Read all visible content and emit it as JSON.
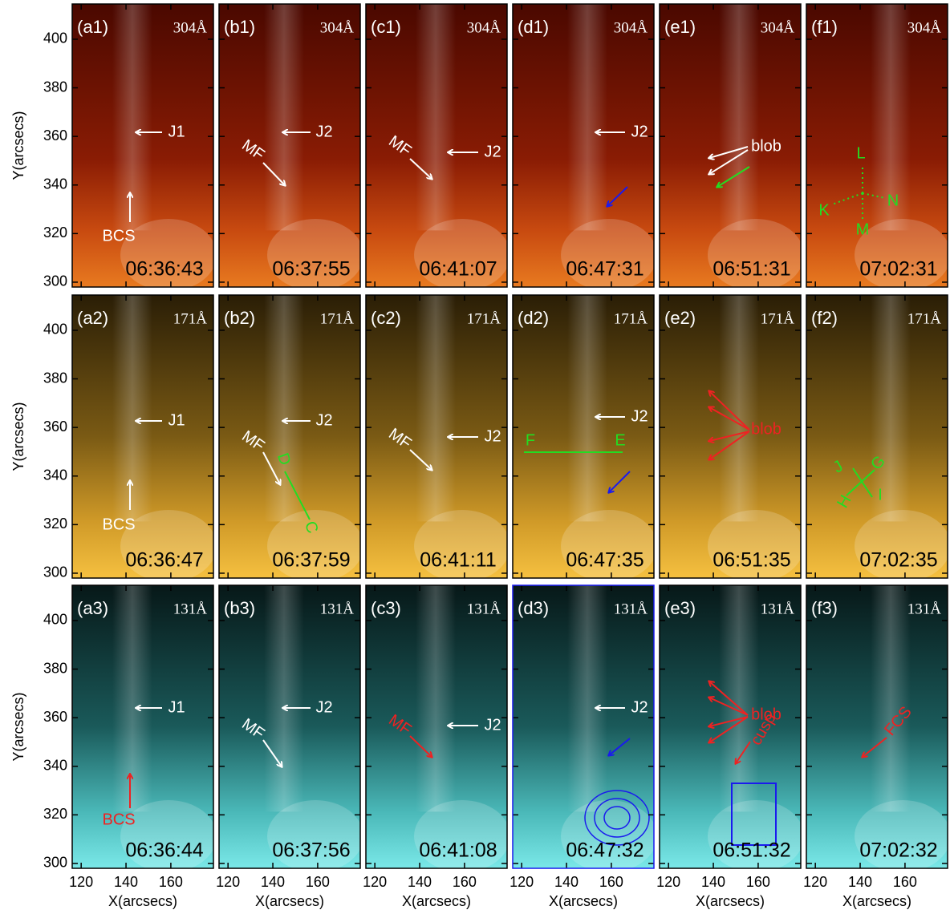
{
  "figure": {
    "y_axis_label": "Y(arcsecs)",
    "x_axis_label": "X(arcsecs)",
    "xlim": [
      116,
      179
    ],
    "ylim": [
      298,
      414.5
    ],
    "xticks": [
      120,
      140,
      160
    ],
    "yticks": [
      300,
      320,
      340,
      360,
      380,
      400
    ],
    "rows": [
      {
        "wavelength": "304Å",
        "panels": [
          {
            "label": "(a1)",
            "time": "06:36:43",
            "annotations": [
              {
                "text": "J1",
                "color": "#ffffff"
              },
              {
                "text": "BCS",
                "color": "#ffffff"
              }
            ]
          },
          {
            "label": "(b1)",
            "time": "06:37:55",
            "annotations": [
              {
                "text": "J2",
                "color": "#ffffff"
              },
              {
                "text": "MF",
                "color": "#ffffff"
              }
            ]
          },
          {
            "label": "(c1)",
            "time": "06:41:07",
            "annotations": [
              {
                "text": "MF",
                "color": "#ffffff"
              },
              {
                "text": "J2",
                "color": "#ffffff"
              }
            ]
          },
          {
            "label": "(d1)",
            "time": "06:47:31",
            "annotations": [
              {
                "text": "J2",
                "color": "#ffffff"
              }
            ]
          },
          {
            "label": "(e1)",
            "time": "06:51:31",
            "annotations": [
              {
                "text": "blob",
                "color": "#ffffff"
              }
            ]
          },
          {
            "label": "(f1)",
            "time": "07:02:31",
            "annotations": [
              {
                "text": "L",
                "color": "#22dd22"
              },
              {
                "text": "K",
                "color": "#22dd22"
              },
              {
                "text": "M",
                "color": "#22dd22"
              },
              {
                "text": "N",
                "color": "#22dd22"
              }
            ]
          }
        ]
      },
      {
        "wavelength": "171Å",
        "panels": [
          {
            "label": "(a2)",
            "time": "06:36:47",
            "annotations": [
              {
                "text": "J1",
                "color": "#ffffff"
              },
              {
                "text": "BCS",
                "color": "#ffffff"
              }
            ]
          },
          {
            "label": "(b2)",
            "time": "06:37:59",
            "annotations": [
              {
                "text": "J2",
                "color": "#ffffff"
              },
              {
                "text": "MF",
                "color": "#ffffff"
              },
              {
                "text": "D",
                "color": "#22dd22"
              },
              {
                "text": "C",
                "color": "#22dd22"
              }
            ]
          },
          {
            "label": "(c2)",
            "time": "06:41:11",
            "annotations": [
              {
                "text": "J2",
                "color": "#ffffff"
              },
              {
                "text": "MF",
                "color": "#ffffff"
              }
            ]
          },
          {
            "label": "(d2)",
            "time": "06:47:35",
            "annotations": [
              {
                "text": "J2",
                "color": "#ffffff"
              },
              {
                "text": "F",
                "color": "#22dd22"
              },
              {
                "text": "E",
                "color": "#22dd22"
              }
            ]
          },
          {
            "label": "(e2)",
            "time": "06:51:35",
            "annotations": [
              {
                "text": "blob",
                "color": "#ee2222"
              }
            ]
          },
          {
            "label": "(f2)",
            "time": "07:02:35",
            "annotations": [
              {
                "text": "J",
                "color": "#22dd22"
              },
              {
                "text": "G",
                "color": "#22dd22"
              },
              {
                "text": "H",
                "color": "#22dd22"
              },
              {
                "text": "I",
                "color": "#22dd22"
              }
            ]
          }
        ]
      },
      {
        "wavelength": "131Å",
        "panels": [
          {
            "label": "(a3)",
            "time": "06:36:44",
            "annotations": [
              {
                "text": "J1",
                "color": "#ffffff"
              },
              {
                "text": "BCS",
                "color": "#ee2222"
              }
            ]
          },
          {
            "label": "(b3)",
            "time": "06:37:56",
            "annotations": [
              {
                "text": "J2",
                "color": "#ffffff"
              },
              {
                "text": "MF",
                "color": "#ffffff"
              }
            ]
          },
          {
            "label": "(c3)",
            "time": "06:41:08",
            "annotations": [
              {
                "text": "MF",
                "color": "#ee2222"
              },
              {
                "text": "J2",
                "color": "#ffffff"
              }
            ]
          },
          {
            "label": "(d3)",
            "time": "06:47:32",
            "annotations": [
              {
                "text": "J2",
                "color": "#ffffff"
              }
            ]
          },
          {
            "label": "(e3)",
            "time": "06:51:32",
            "annotations": [
              {
                "text": "blob",
                "color": "#ee2222"
              },
              {
                "text": "cusp",
                "color": "#ee2222"
              }
            ]
          },
          {
            "label": "(f3)",
            "time": "07:02:32",
            "annotations": [
              {
                "text": "FCS",
                "color": "#ee2222"
              }
            ]
          }
        ]
      }
    ]
  }
}
